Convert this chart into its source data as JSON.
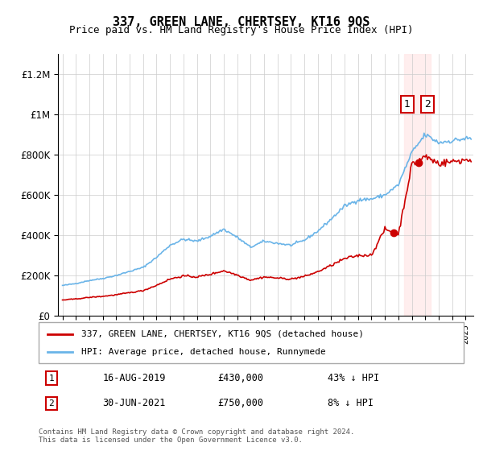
{
  "title": "337, GREEN LANE, CHERTSEY, KT16 9QS",
  "subtitle": "Price paid vs. HM Land Registry's House Price Index (HPI)",
  "legend_line1": "337, GREEN LANE, CHERTSEY, KT16 9QS (detached house)",
  "legend_line2": "HPI: Average price, detached house, Runnymede",
  "transaction1_label": "1",
  "transaction1_date": "16-AUG-2019",
  "transaction1_price": "£430,000",
  "transaction1_note": "43% ↓ HPI",
  "transaction2_label": "2",
  "transaction2_date": "30-JUN-2021",
  "transaction2_price": "£750,000",
  "transaction2_note": "8% ↓ HPI",
  "footnote": "Contains HM Land Registry data © Crown copyright and database right 2024.\nThis data is licensed under the Open Government Licence v3.0.",
  "hpi_color": "#6ab4e8",
  "price_color": "#cc0000",
  "highlight_color": "#ffe0e0",
  "highlight_color2": "#e8f4ff",
  "ylim": [
    0,
    1300000
  ],
  "yticks": [
    0,
    200000,
    400000,
    600000,
    800000,
    1000000,
    1200000
  ],
  "ytick_labels": [
    "£0",
    "£200K",
    "£400K",
    "£600K",
    "£800K",
    "£1M",
    "£1.2M"
  ],
  "x_start_year": 1995,
  "x_end_year": 2025
}
